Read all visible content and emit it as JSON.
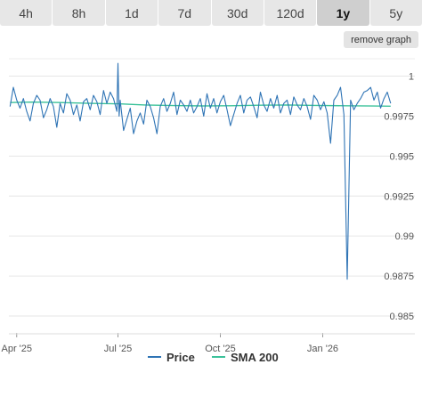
{
  "range_tabs": [
    {
      "label": "4h",
      "active": false
    },
    {
      "label": "8h",
      "active": false
    },
    {
      "label": "1d",
      "active": false
    },
    {
      "label": "7d",
      "active": false
    },
    {
      "label": "30d",
      "active": false
    },
    {
      "label": "120d",
      "active": false
    },
    {
      "label": "1y",
      "active": true
    },
    {
      "label": "5y",
      "active": false
    }
  ],
  "remove_graph_label": "remove graph",
  "chart_data": {
    "type": "line",
    "xlabel": "",
    "ylabel": "",
    "x_ticks": [
      "Apr '25",
      "Jul '25",
      "Oct '25",
      "Jan '26"
    ],
    "x_range": [
      "2025-03-25",
      "2026-03-04"
    ],
    "ylim": [
      0.985,
      1.0012
    ],
    "y_ticks": [
      0.985,
      0.9875,
      0.99,
      0.9925,
      0.995,
      0.9975,
      1
    ],
    "y_tick_labels": [
      "0.985",
      "0.9875",
      "0.99",
      "0.9925",
      "0.995",
      "0.9975",
      "1"
    ],
    "grid": true,
    "legend": "bottom-center",
    "series": [
      {
        "name": "Price",
        "color": "#2f74b5",
        "x": [
          "2025-03-26",
          "2025-03-29",
          "2025-04-01",
          "2025-04-04",
          "2025-04-07",
          "2025-04-10",
          "2025-04-13",
          "2025-04-16",
          "2025-04-19",
          "2025-04-22",
          "2025-04-25",
          "2025-04-28",
          "2025-05-01",
          "2025-05-04",
          "2025-05-07",
          "2025-05-10",
          "2025-05-13",
          "2025-05-16",
          "2025-05-19",
          "2025-05-22",
          "2025-05-25",
          "2025-05-28",
          "2025-05-31",
          "2025-06-03",
          "2025-06-06",
          "2025-06-09",
          "2025-06-12",
          "2025-06-15",
          "2025-06-18",
          "2025-06-21",
          "2025-06-24",
          "2025-06-27",
          "2025-06-30",
          "2025-07-01",
          "2025-07-02",
          "2025-07-03",
          "2025-07-06",
          "2025-07-09",
          "2025-07-12",
          "2025-07-15",
          "2025-07-18",
          "2025-07-21",
          "2025-07-24",
          "2025-07-27",
          "2025-07-30",
          "2025-08-02",
          "2025-08-05",
          "2025-08-08",
          "2025-08-11",
          "2025-08-14",
          "2025-08-17",
          "2025-08-20",
          "2025-08-23",
          "2025-08-26",
          "2025-08-29",
          "2025-09-01",
          "2025-09-04",
          "2025-09-07",
          "2025-09-10",
          "2025-09-13",
          "2025-09-16",
          "2025-09-19",
          "2025-09-22",
          "2025-09-25",
          "2025-09-28",
          "2025-10-01",
          "2025-10-04",
          "2025-10-07",
          "2025-10-10",
          "2025-10-13",
          "2025-10-16",
          "2025-10-19",
          "2025-10-22",
          "2025-10-25",
          "2025-10-28",
          "2025-10-31",
          "2025-11-03",
          "2025-11-06",
          "2025-11-09",
          "2025-11-12",
          "2025-11-15",
          "2025-11-18",
          "2025-11-21",
          "2025-11-24",
          "2025-11-27",
          "2025-11-30",
          "2025-12-03",
          "2025-12-06",
          "2025-12-09",
          "2025-12-12",
          "2025-12-15",
          "2025-12-18",
          "2025-12-21",
          "2025-12-24",
          "2025-12-27",
          "2025-12-30",
          "2026-01-02",
          "2026-01-05",
          "2026-01-08",
          "2026-01-11",
          "2026-01-14",
          "2026-01-17",
          "2026-01-20",
          "2026-01-23",
          "2026-01-26",
          "2026-01-29",
          "2026-02-01",
          "2026-02-04",
          "2026-02-07",
          "2026-02-10",
          "2026-02-13",
          "2026-02-16",
          "2026-02-19",
          "2026-02-22",
          "2026-02-25",
          "2026-02-28",
          "2026-03-03"
        ],
        "values": [
          0.9981,
          0.9993,
          0.9985,
          0.998,
          0.9986,
          0.9978,
          0.9972,
          0.9983,
          0.9988,
          0.9985,
          0.9974,
          0.9979,
          0.9986,
          0.9981,
          0.9968,
          0.9983,
          0.9977,
          0.9989,
          0.9985,
          0.9976,
          0.9982,
          0.9972,
          0.9984,
          0.9986,
          0.9979,
          0.9988,
          0.9984,
          0.9976,
          0.9991,
          0.9983,
          0.999,
          0.9986,
          0.9978,
          1.0008,
          0.9975,
          0.9985,
          0.9966,
          0.9973,
          0.998,
          0.9964,
          0.9972,
          0.9977,
          0.997,
          0.9985,
          0.9981,
          0.9974,
          0.9964,
          0.9981,
          0.9986,
          0.9978,
          0.9983,
          0.999,
          0.9976,
          0.9985,
          0.9982,
          0.9978,
          0.9985,
          0.9977,
          0.9981,
          0.9986,
          0.9975,
          0.9989,
          0.998,
          0.9986,
          0.9977,
          0.9984,
          0.9988,
          0.9979,
          0.9969,
          0.9976,
          0.9983,
          0.9988,
          0.9977,
          0.9985,
          0.9987,
          0.9981,
          0.9974,
          0.999,
          0.9982,
          0.9978,
          0.9986,
          0.998,
          0.9988,
          0.9977,
          0.9983,
          0.9985,
          0.9976,
          0.9987,
          0.9982,
          0.9979,
          0.9986,
          0.9981,
          0.9973,
          0.9988,
          0.9985,
          0.9979,
          0.9984,
          0.9977,
          0.9958,
          0.9985,
          0.9988,
          0.9993,
          0.9976,
          0.9873,
          0.9985,
          0.9979,
          0.9983,
          0.9986,
          0.999,
          0.9991,
          0.9993,
          0.9985,
          0.999,
          0.998,
          0.9986,
          0.999,
          0.9983
        ]
      },
      {
        "name": "SMA 200",
        "color": "#3cc29a",
        "x": [
          "2025-03-26",
          "2025-04-15",
          "2025-05-10",
          "2025-06-05",
          "2025-07-01",
          "2025-07-25",
          "2025-08-20",
          "2025-09-15",
          "2025-10-10",
          "2025-11-05",
          "2025-12-01",
          "2025-12-25",
          "2026-01-20",
          "2026-02-15",
          "2026-03-03"
        ],
        "values": [
          0.99835,
          0.99838,
          0.99835,
          0.9983,
          0.99827,
          0.9982,
          0.99816,
          0.99814,
          0.99815,
          0.99818,
          0.9982,
          0.99817,
          0.99815,
          0.99813,
          0.99812
        ]
      }
    ]
  }
}
